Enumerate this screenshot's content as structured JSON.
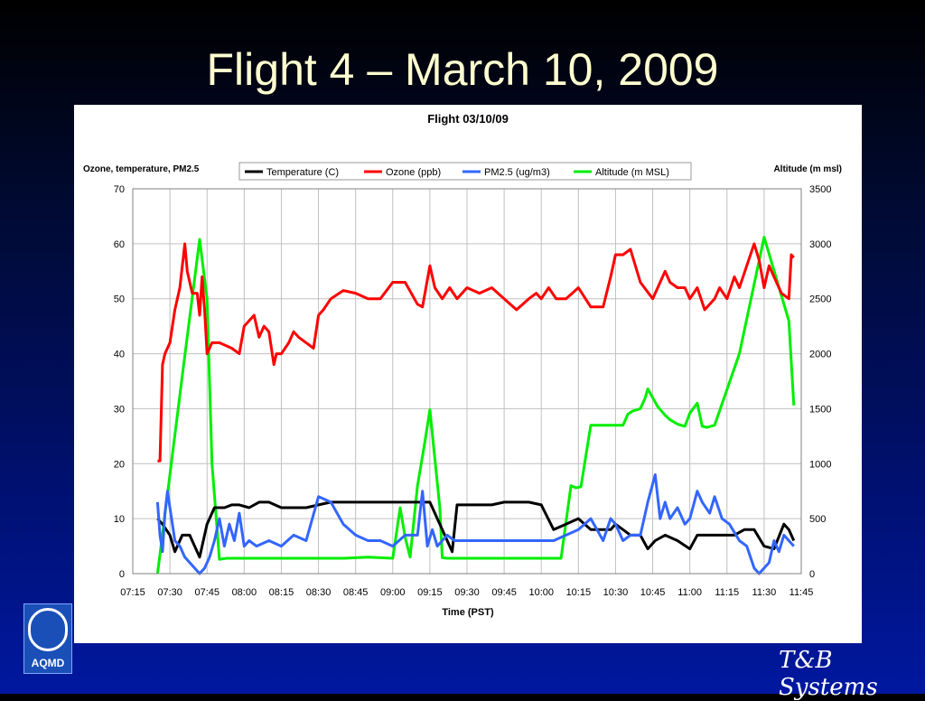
{
  "slide": {
    "title": "Flight 4 – March 10, 2009"
  },
  "logos": {
    "aqmd": "AQMD",
    "tb": "T&B Systems"
  },
  "colors": {
    "temperature": "#000000",
    "ozone": "#ff0000",
    "pm25": "#3366ff",
    "altitude": "#00ee00"
  },
  "chart_data": {
    "type": "line",
    "title": "Flight 03/10/09",
    "xlabel": "Time (PST)",
    "ylabel": "Ozone, temperature, PM2.5",
    "y2label": "Altitude (m msl)",
    "xlim_minutes": [
      435,
      705
    ],
    "x_ticks": [
      "07:15",
      "07:30",
      "07:45",
      "08:00",
      "08:15",
      "08:30",
      "08:45",
      "09:00",
      "09:15",
      "09:30",
      "09:45",
      "10:00",
      "10:15",
      "10:30",
      "10:45",
      "11:00",
      "11:15",
      "11:30",
      "11:45"
    ],
    "ylim": [
      0,
      70
    ],
    "y_ticks": [
      "0",
      "10",
      "20",
      "30",
      "40",
      "50",
      "60",
      "70"
    ],
    "y2lim": [
      0,
      3500
    ],
    "y2_ticks": [
      "0",
      "500",
      "1000",
      "1500",
      "2000",
      "2500",
      "3000",
      "3500"
    ],
    "grid": true,
    "legend_position": "top",
    "series": [
      {
        "name": "Temperature (C)",
        "axis": "left",
        "x": [
          445,
          447,
          450,
          452,
          455,
          458,
          460,
          462,
          465,
          468,
          470,
          472,
          475,
          478,
          482,
          486,
          490,
          495,
          500,
          505,
          510,
          515,
          520,
          525,
          530,
          535,
          540,
          545,
          550,
          555,
          560,
          562,
          564,
          566,
          568,
          570,
          575,
          580,
          585,
          590,
          595,
          600,
          605,
          610,
          615,
          620,
          625,
          628,
          630,
          633,
          636,
          640,
          643,
          646,
          650,
          655,
          660,
          663,
          666,
          670,
          674,
          678,
          682,
          686,
          690,
          694,
          698,
          700,
          702
        ],
        "y": [
          10,
          9,
          7,
          4,
          7,
          7,
          5,
          3,
          9,
          12,
          12,
          12,
          12.5,
          12.5,
          12,
          13,
          13,
          12,
          12,
          12,
          12.5,
          13,
          13,
          13,
          13,
          13,
          13,
          13,
          13,
          13,
          8,
          6,
          4,
          12.5,
          12.5,
          12.5,
          12.5,
          12.5,
          13,
          13,
          13,
          12.5,
          8,
          9,
          10,
          8,
          8,
          8,
          9,
          8,
          7,
          7,
          4.5,
          6,
          7,
          6,
          4.5,
          7,
          7,
          7,
          7,
          7,
          8,
          8,
          5,
          4.5,
          9,
          8,
          6
        ]
      },
      {
        "name": "Ozone (ppb)",
        "axis": "left",
        "x": [
          445,
          446,
          447,
          448,
          450,
          452,
          454,
          456,
          457,
          459,
          461,
          462,
          463,
          464,
          465,
          467,
          470,
          475,
          478,
          480,
          484,
          486,
          488,
          490,
          492,
          493,
          495,
          498,
          500,
          502,
          505,
          508,
          510,
          512,
          515,
          520,
          525,
          530,
          535,
          540,
          545,
          550,
          552,
          555,
          557,
          560,
          563,
          566,
          570,
          575,
          580,
          585,
          590,
          595,
          598,
          600,
          603,
          606,
          610,
          615,
          620,
          625,
          628,
          630,
          633,
          636,
          640,
          645,
          648,
          650,
          652,
          655,
          658,
          660,
          663,
          666,
          670,
          672,
          675,
          678,
          680,
          683,
          686,
          688,
          690,
          692,
          695,
          697,
          700,
          701,
          702
        ],
        "y": [
          20.5,
          20.5,
          38,
          40,
          42,
          48,
          52,
          60,
          55,
          51,
          51,
          47,
          54,
          48,
          40,
          42,
          42,
          41,
          40,
          45,
          47,
          43,
          45,
          44,
          38,
          40,
          40,
          42,
          44,
          43,
          42,
          41,
          47,
          48,
          50,
          51.5,
          51,
          50,
          50,
          53,
          53,
          49,
          48.5,
          56,
          52,
          50,
          52,
          50,
          52,
          51,
          52,
          50,
          48,
          50,
          51,
          50,
          52,
          50,
          50,
          52,
          48.5,
          48.5,
          54,
          58,
          58,
          59,
          53,
          50,
          53,
          55,
          53,
          52,
          52,
          50,
          52,
          48,
          50,
          52,
          50,
          54,
          52,
          56,
          60,
          57,
          52,
          56,
          53,
          51,
          50,
          58,
          57.5
        ]
      },
      {
        "name": "PM2.5 (ug/m3)",
        "axis": "left",
        "x": [
          445,
          446,
          447,
          448,
          449,
          450,
          452,
          454,
          456,
          458,
          460,
          462,
          464,
          466,
          468,
          470,
          472,
          474,
          476,
          478,
          480,
          482,
          485,
          490,
          495,
          500,
          505,
          510,
          515,
          520,
          525,
          530,
          535,
          540,
          545,
          550,
          552,
          554,
          556,
          558,
          560,
          562,
          565,
          570,
          575,
          580,
          585,
          590,
          595,
          600,
          605,
          610,
          615,
          620,
          625,
          628,
          630,
          633,
          636,
          640,
          643,
          646,
          648,
          650,
          652,
          655,
          658,
          660,
          663,
          665,
          668,
          670,
          673,
          676,
          680,
          683,
          686,
          688,
          690,
          692,
          694,
          696,
          698,
          700,
          702
        ],
        "y": [
          13,
          7,
          4,
          11,
          15,
          12,
          6,
          5,
          3,
          2,
          1,
          0,
          1,
          3,
          6,
          10,
          5,
          9,
          6,
          11,
          5,
          6,
          5,
          6,
          5,
          7,
          6,
          14,
          13,
          9,
          7,
          6,
          6,
          5,
          7,
          7,
          15,
          5,
          8,
          5,
          6,
          7,
          6,
          6,
          6,
          6,
          6,
          6,
          6,
          6,
          6,
          7,
          8,
          10,
          6,
          10,
          9,
          6,
          7,
          7,
          13,
          18,
          10,
          13,
          10,
          12,
          9,
          10,
          15,
          13,
          11,
          14,
          10,
          9,
          6,
          5,
          1,
          0,
          1,
          2,
          6,
          4,
          7,
          6,
          5
        ]
      },
      {
        "name": "Altitude (m MSL)",
        "axis": "right",
        "x": [
          445,
          455,
          462,
          465,
          467,
          470,
          473,
          476,
          480,
          490,
          500,
          510,
          520,
          530,
          540,
          543,
          545,
          547,
          550,
          553,
          555,
          559,
          560,
          562,
          565,
          570,
          580,
          590,
          600,
          605,
          608,
          612,
          614,
          616,
          620,
          625,
          630,
          633,
          635,
          637,
          640,
          642,
          643,
          645,
          647,
          650,
          652,
          655,
          658,
          660,
          663,
          665,
          667,
          670,
          680,
          690,
          700,
          702
        ],
        "y": [
          0,
          1800,
          3040,
          2500,
          1000,
          130,
          140,
          140,
          140,
          140,
          140,
          140,
          140,
          150,
          140,
          600,
          330,
          150,
          800,
          1200,
          1490,
          600,
          145,
          140,
          140,
          140,
          140,
          140,
          140,
          140,
          140,
          800,
          780,
          790,
          1350,
          1350,
          1350,
          1350,
          1450,
          1480,
          1500,
          1600,
          1680,
          1600,
          1520,
          1440,
          1400,
          1360,
          1340,
          1460,
          1550,
          1340,
          1330,
          1350,
          2000,
          3060,
          2300,
          1530
        ]
      }
    ]
  }
}
